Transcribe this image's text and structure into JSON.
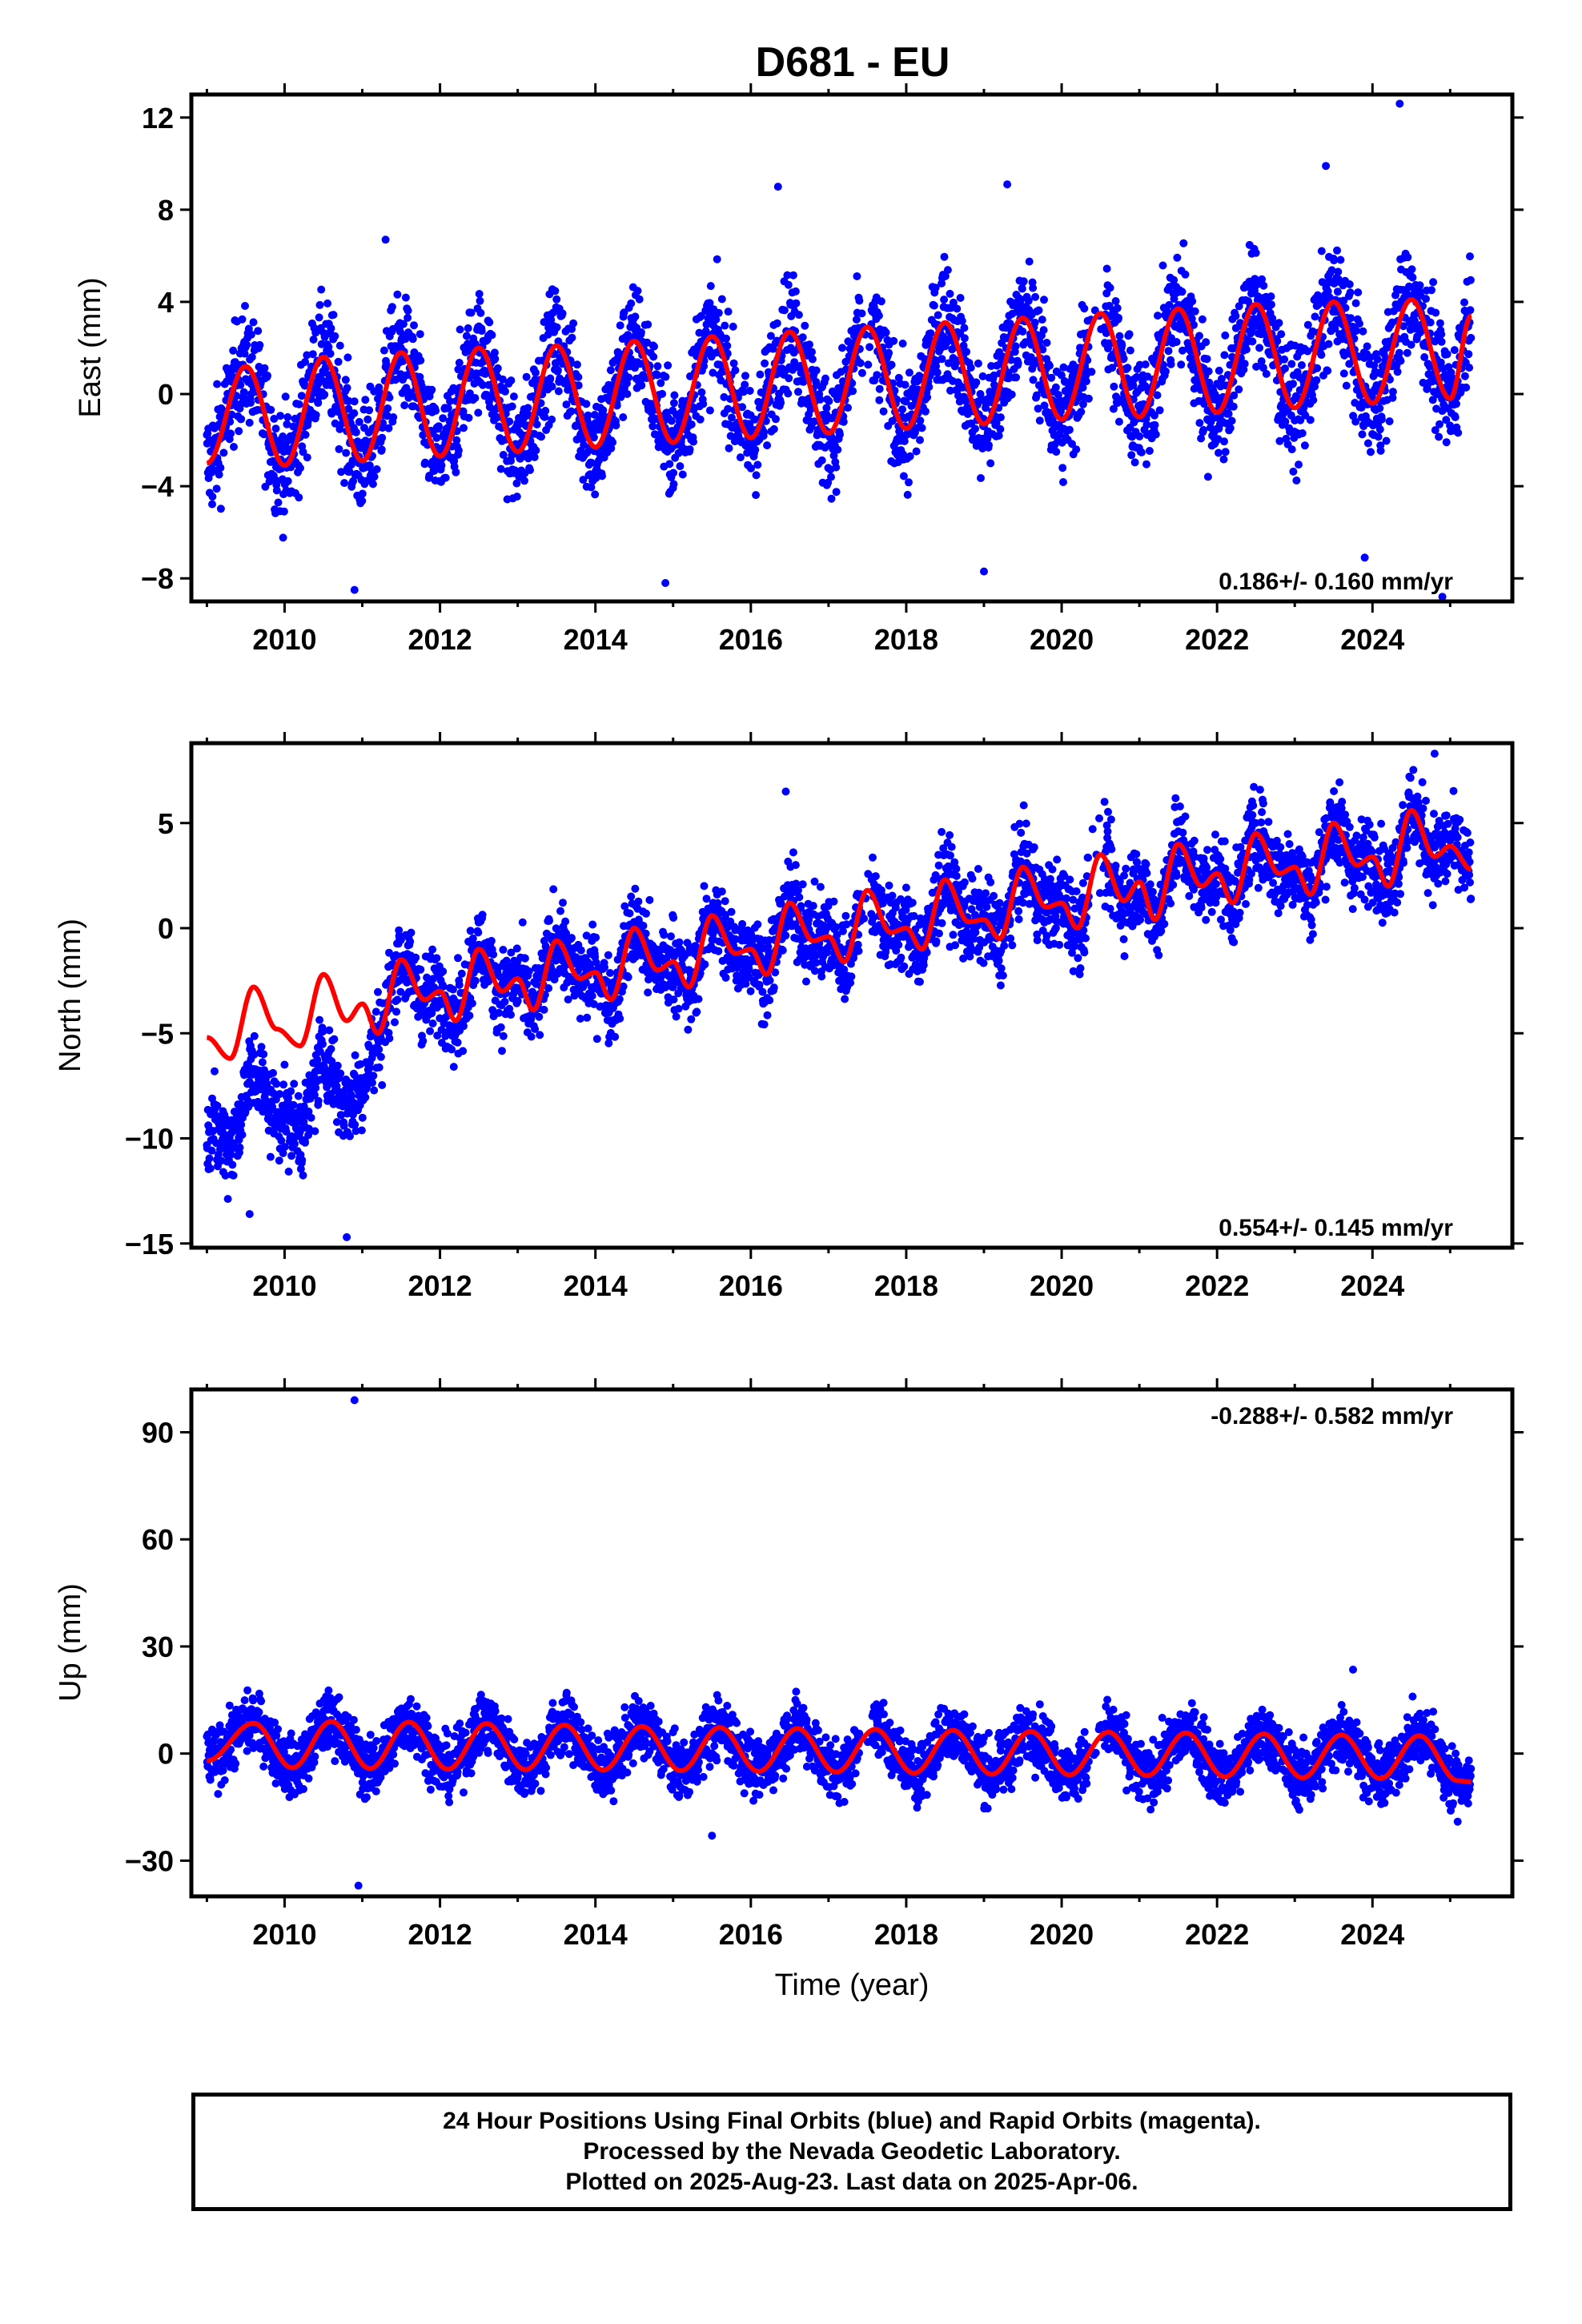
{
  "chart_data": {
    "title": "D681 - EU",
    "type": "scatter",
    "xlabel": "Time (year)",
    "xlim": [
      2008.8,
      2025.8
    ],
    "xticks": [
      2010,
      2012,
      2014,
      2016,
      2018,
      2020,
      2022,
      2024
    ],
    "colors": {
      "points": "#0000ff",
      "model": "#ff0000"
    },
    "panels": [
      {
        "id": "east",
        "ylabel": "East (mm)",
        "ylim": [
          -9,
          13
        ],
        "yticks": [
          -8,
          -4,
          0,
          4,
          8,
          12
        ],
        "rate": "0.186+/- 0.160 mm/yr",
        "rate_position": "bottom-right",
        "series": {
          "x": [
            2009.0,
            2009.5,
            2010.0,
            2010.5,
            2011.0,
            2011.5,
            2012.0,
            2012.5,
            2013.0,
            2013.5,
            2014.0,
            2014.5,
            2015.0,
            2015.5,
            2016.0,
            2016.5,
            2017.0,
            2017.5,
            2018.0,
            2018.5,
            2019.0,
            2019.5,
            2020.0,
            2020.5,
            2021.0,
            2021.5,
            2022.0,
            2022.5,
            2023.0,
            2023.5,
            2024.0,
            2024.5,
            2025.0,
            2025.27
          ],
          "y_model": [
            -3.0,
            1.2,
            -3.1,
            1.6,
            -2.9,
            1.8,
            -2.7,
            2.0,
            -2.5,
            2.1,
            -2.3,
            2.3,
            -2.1,
            2.5,
            -1.9,
            2.7,
            -1.7,
            2.9,
            -1.5,
            3.1,
            -1.3,
            3.3,
            -1.1,
            3.5,
            -1.0,
            3.7,
            -0.8,
            3.9,
            -0.6,
            4.0,
            -0.4,
            4.1,
            -0.2,
            3.4
          ],
          "scatter_amplitude": 2.2,
          "outliers": [
            {
              "x": 2024.35,
              "y": 12.6
            },
            {
              "x": 2023.4,
              "y": 9.9
            },
            {
              "x": 2019.3,
              "y": 9.1
            },
            {
              "x": 2016.35,
              "y": 9.0
            },
            {
              "x": 2011.3,
              "y": 6.7
            },
            {
              "x": 2010.9,
              "y": -8.5
            },
            {
              "x": 2014.9,
              "y": -8.2
            },
            {
              "x": 2019.0,
              "y": -7.7
            },
            {
              "x": 2023.9,
              "y": -7.1
            },
            {
              "x": 2024.9,
              "y": -8.8
            }
          ]
        }
      },
      {
        "id": "north",
        "ylabel": "North (mm)",
        "ylim": [
          -15.2,
          8.8
        ],
        "yticks": [
          -15,
          -10,
          -5,
          0,
          5
        ],
        "rate": "0.554+/- 0.145 mm/yr",
        "rate_position": "bottom-right",
        "series": {
          "x": [
            2009.0,
            2009.3,
            2009.6,
            2009.9,
            2010.2,
            2010.5,
            2010.8,
            2011.0,
            2011.2,
            2011.5,
            2011.8,
            2012.0,
            2012.2,
            2012.5,
            2012.8,
            2013.0,
            2013.2,
            2013.5,
            2013.8,
            2014.0,
            2014.2,
            2014.5,
            2014.8,
            2015.0,
            2015.2,
            2015.5,
            2015.8,
            2016.0,
            2016.2,
            2016.5,
            2016.8,
            2017.0,
            2017.2,
            2017.5,
            2017.8,
            2018.0,
            2018.2,
            2018.5,
            2018.8,
            2019.0,
            2019.2,
            2019.5,
            2019.8,
            2020.0,
            2020.2,
            2020.5,
            2020.8,
            2021.0,
            2021.2,
            2021.5,
            2021.8,
            2022.0,
            2022.2,
            2022.5,
            2022.8,
            2023.0,
            2023.2,
            2023.5,
            2023.8,
            2024.0,
            2024.2,
            2024.5,
            2024.8,
            2025.0,
            2025.27
          ],
          "y_model": [
            -5.2,
            -6.2,
            -2.8,
            -4.8,
            -5.6,
            -2.2,
            -4.4,
            -3.6,
            -5.0,
            -1.5,
            -3.4,
            -3.0,
            -4.4,
            -1.0,
            -3.0,
            -2.4,
            -3.9,
            -0.6,
            -2.4,
            -2.1,
            -3.4,
            0.0,
            -2.0,
            -1.6,
            -2.8,
            0.6,
            -1.2,
            -1.0,
            -2.2,
            1.2,
            -0.6,
            -0.4,
            -1.6,
            1.8,
            -0.2,
            0.0,
            -1.0,
            2.3,
            0.3,
            0.4,
            -0.5,
            2.9,
            1.0,
            1.2,
            0.0,
            3.5,
            1.3,
            2.2,
            0.4,
            4.0,
            2.0,
            2.6,
            1.2,
            4.5,
            2.6,
            2.9,
            1.6,
            5.0,
            3.0,
            3.4,
            2.0,
            5.6,
            3.4,
            3.9,
            2.8
          ],
          "data_offset_before_2011_2": -4.0,
          "scatter_amplitude": 1.8,
          "outliers": [
            {
              "x": 2010.8,
              "y": -14.7
            },
            {
              "x": 2009.55,
              "y": -13.6
            },
            {
              "x": 2016.45,
              "y": 6.5
            },
            {
              "x": 2024.8,
              "y": 8.3
            }
          ]
        }
      },
      {
        "id": "up",
        "ylabel": "Up (mm)",
        "ylim": [
          -40,
          102
        ],
        "yticks": [
          -30,
          0,
          30,
          60,
          90
        ],
        "rate": "-0.288+/- 0.582 mm/yr",
        "rate_position": "top-right",
        "series": {
          "x": [
            2009.0,
            2009.6,
            2010.1,
            2010.6,
            2011.1,
            2011.6,
            2012.1,
            2012.6,
            2013.1,
            2013.6,
            2014.1,
            2014.6,
            2015.1,
            2015.6,
            2016.1,
            2016.6,
            2017.1,
            2017.6,
            2018.1,
            2018.6,
            2019.1,
            2019.6,
            2020.1,
            2020.6,
            2021.1,
            2021.6,
            2022.1,
            2022.6,
            2023.1,
            2023.6,
            2024.1,
            2024.6,
            2025.1,
            2025.27
          ],
          "y_model": [
            -2.0,
            8.5,
            -4.0,
            9.0,
            -4.2,
            8.8,
            -4.4,
            8.4,
            -4.5,
            8.0,
            -4.6,
            7.6,
            -4.8,
            7.3,
            -5.0,
            7.0,
            -5.2,
            6.8,
            -5.5,
            6.5,
            -5.8,
            6.2,
            -6.0,
            6.0,
            -6.2,
            5.8,
            -6.5,
            5.5,
            -6.8,
            5.2,
            -7.0,
            5.0,
            -7.6,
            -8.0
          ],
          "scatter_amplitude": 7.5,
          "outliers": [
            {
              "x": 2010.9,
              "y": 99.0
            },
            {
              "x": 2010.95,
              "y": -37.0
            },
            {
              "x": 2023.75,
              "y": 23.5
            },
            {
              "x": 2015.5,
              "y": -23.0
            }
          ]
        }
      }
    ]
  },
  "caption": {
    "line1": "24 Hour Positions Using Final Orbits (blue) and Rapid Orbits (magenta).",
    "line2": "Processed by the Nevada Geodetic Laboratory.",
    "line3": "Plotted on 2025-Aug-23. Last data on 2025-Apr-06."
  }
}
